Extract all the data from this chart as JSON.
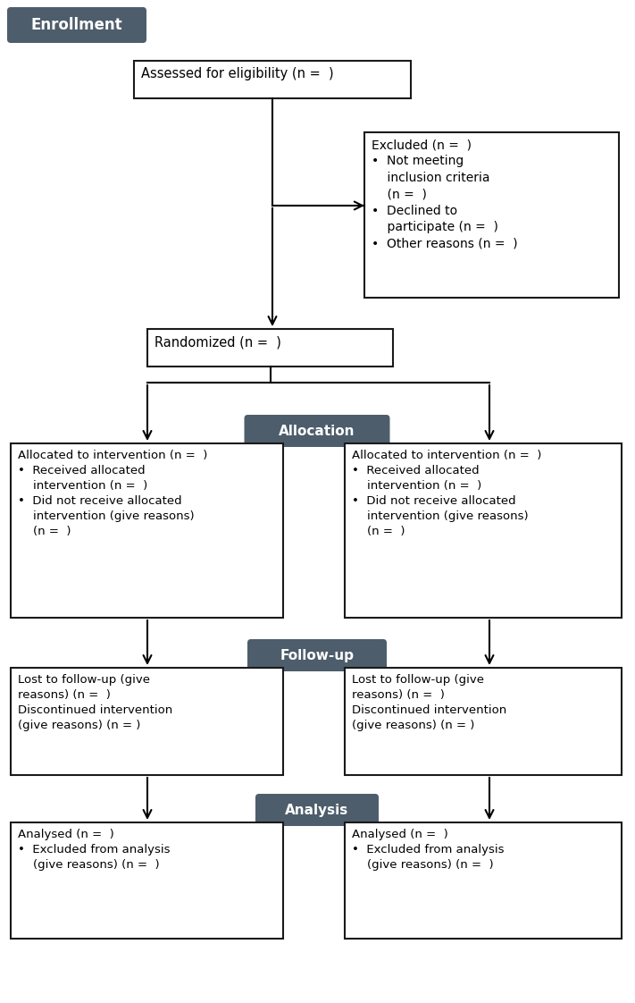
{
  "bg_color": "#ffffff",
  "header_bg": "#4d5d6b",
  "header_text_color": "#ffffff",
  "box_border_color": "#1a1a1a",
  "box_bg": "#ffffff",
  "text_color": "#000000",
  "enrollment_label": "Enrollment",
  "eligibility_text": "Assessed for eligibility (n =  )",
  "excluded_text": "Excluded (n =  )\n•  Not meeting\n    inclusion criteria\n    (n =  )\n•  Declined to\n    participate (n =  )\n•  Other reasons (n =  )",
  "randomized_text": "Randomized (n =  )",
  "allocation_label": "Allocation",
  "alloc_left_text": "Allocated to intervention (n =  )\n•  Received allocated\n    intervention (n =  )\n•  Did not receive allocated\n    intervention (give reasons)\n    (n =  )",
  "alloc_right_text": "Allocated to intervention (n =  )\n•  Received allocated\n    intervention (n =  )\n•  Did not receive allocated\n    intervention (give reasons)\n    (n =  )",
  "followup_label": "Follow-up",
  "followup_left_text": "Lost to follow-up (give\nreasons) (n =  )\nDiscontinued intervention\n(give reasons) (n = )",
  "followup_right_text": "Lost to follow-up (give\nreasons) (n =  )\nDiscontinued intervention\n(give reasons) (n = )",
  "analysis_label": "Analysis",
  "analysis_left_text": "Analysed (n =  )\n•  Excluded from analysis\n    (give reasons) (n =  )",
  "analysis_right_text": "Analysed (n =  )\n•  Excluded from analysis\n    (give reasons) (n =  )"
}
